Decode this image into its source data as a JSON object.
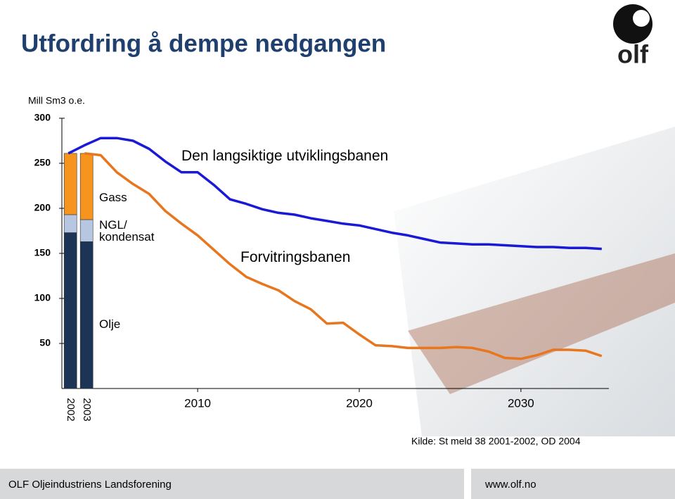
{
  "title": "Utfordring å dempe nedgangen",
  "logo_text": "olf",
  "source": "Kilde: St meld 38 2001-2002, OD 2004",
  "footer": {
    "left": "OLF Oljeindustriens Landsforening",
    "right": "www.olf.no"
  },
  "chart_data": [
    {
      "type": "bar",
      "stacked": true,
      "y_label": "Mill Sm3 o.e.",
      "categories": [
        "2002",
        "2003"
      ],
      "x": [
        2002,
        2003
      ],
      "ylim": [
        0,
        300
      ],
      "yticks": [
        50,
        100,
        150,
        200,
        250,
        300
      ],
      "series": [
        {
          "name": "Olje",
          "color": "#1c3557",
          "values": [
            173,
            163
          ]
        },
        {
          "name": "NGL/ kondensat",
          "color": "#b7c7e1",
          "values": [
            20,
            24.5
          ]
        },
        {
          "name": "Gass",
          "color": "#f7941d",
          "values": [
            68,
            73.5
          ]
        }
      ]
    },
    {
      "type": "line",
      "x": [
        2002,
        2003,
        2004,
        2005,
        2006,
        2007,
        2008,
        2009,
        2010,
        2011,
        2012,
        2013,
        2014,
        2015,
        2016,
        2017,
        2018,
        2019,
        2020,
        2021,
        2022,
        2023,
        2024,
        2025,
        2026,
        2027,
        2028,
        2029,
        2030,
        2031,
        2032,
        2033,
        2034,
        2035
      ],
      "xlim": [
        2001.6,
        2035.4
      ],
      "xticks": [
        2010,
        2020,
        2030
      ],
      "series": [
        {
          "name": "Den langsiktige utviklingsbanen",
          "color": "#1a1ad6",
          "values": [
            261,
            270,
            278,
            278,
            275,
            266,
            252,
            240,
            240,
            226,
            210,
            205,
            199,
            195,
            193,
            189,
            186,
            183,
            181,
            177,
            173,
            170,
            166,
            162,
            161,
            160,
            160,
            159,
            158,
            157,
            157,
            156,
            156,
            155
          ]
        },
        {
          "name": "Forvitringsbanen",
          "color": "#e8761e",
          "values": [
            null,
            261,
            259,
            240,
            227,
            216,
            197,
            183,
            170,
            154,
            138,
            124,
            116,
            109,
            97,
            88,
            72,
            73,
            60,
            48,
            47,
            45,
            45,
            45,
            46,
            45,
            41,
            34,
            33,
            37,
            43,
            43,
            42,
            36
          ]
        }
      ]
    }
  ]
}
